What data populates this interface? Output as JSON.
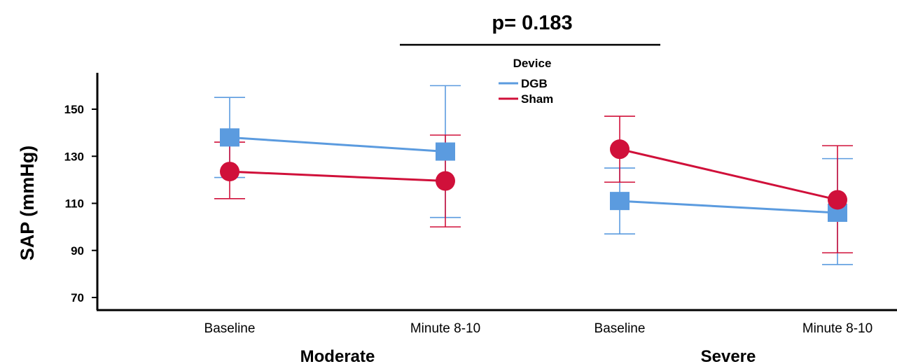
{
  "chart_data": {
    "type": "line",
    "ylabel": "SAP (mmHg)",
    "yticks": [
      70,
      90,
      110,
      130,
      150
    ],
    "ylim": [
      66,
      164
    ],
    "groups": [
      {
        "name": "Moderate",
        "categories": [
          "Baseline",
          "Minute 8-10"
        ]
      },
      {
        "name": "Severe",
        "categories": [
          "Baseline",
          "Minute 8-10"
        ]
      }
    ],
    "legend": {
      "title": "Device",
      "placement": "top-center"
    },
    "series": [
      {
        "name": "DGB",
        "color": "#5b9bdf",
        "marker": "square",
        "points": [
          {
            "group": "Moderate",
            "x": "Baseline",
            "y": 138,
            "err_low": 121,
            "err_high": 155
          },
          {
            "group": "Moderate",
            "x": "Minute 8-10",
            "y": 132,
            "err_low": 104,
            "err_high": 160
          },
          {
            "group": "Severe",
            "x": "Baseline",
            "y": 111,
            "err_low": 97,
            "err_high": 125
          },
          {
            "group": "Severe",
            "x": "Minute 8-10",
            "y": 106,
            "err_low": 84,
            "err_high": 129
          }
        ]
      },
      {
        "name": "Sham",
        "color": "#d0103a",
        "marker": "circle",
        "points": [
          {
            "group": "Moderate",
            "x": "Baseline",
            "y": 123.5,
            "err_low": 112,
            "err_high": 136
          },
          {
            "group": "Moderate",
            "x": "Minute 8-10",
            "y": 119.5,
            "err_low": 100,
            "err_high": 139
          },
          {
            "group": "Severe",
            "x": "Baseline",
            "y": 133,
            "err_low": 119,
            "err_high": 147
          },
          {
            "group": "Severe",
            "x": "Minute 8-10",
            "y": 111.5,
            "err_low": 89,
            "err_high": 134.5
          }
        ]
      }
    ],
    "annotation": {
      "text": "p= 0.183"
    }
  }
}
